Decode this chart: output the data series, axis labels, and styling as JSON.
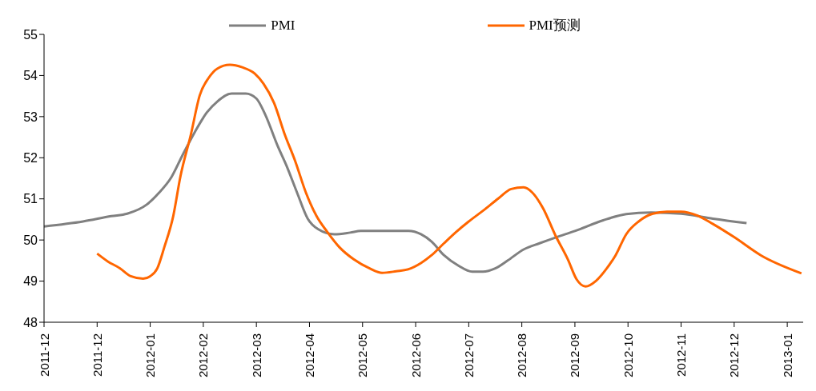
{
  "chart_data": {
    "type": "line",
    "xlim": [
      "2011-12-01",
      "2013-02-02"
    ],
    "ylim": [
      48,
      55
    ],
    "yticks": [
      48,
      49,
      50,
      51,
      52,
      53,
      54,
      55
    ],
    "xticks": [
      {
        "value": "2011-12-01",
        "label": "2011-12"
      },
      {
        "value": "2011-12-31",
        "label": "2011-12"
      },
      {
        "value": "2012-01-30",
        "label": "2012-01"
      },
      {
        "value": "2012-02-29",
        "label": "2012-02"
      },
      {
        "value": "2012-03-30",
        "label": "2012-03"
      },
      {
        "value": "2012-04-29",
        "label": "2012-04"
      },
      {
        "value": "2012-05-29",
        "label": "2012-05"
      },
      {
        "value": "2012-06-28",
        "label": "2012-06"
      },
      {
        "value": "2012-07-28",
        "label": "2012-07"
      },
      {
        "value": "2012-08-27",
        "label": "2012-08"
      },
      {
        "value": "2012-09-26",
        "label": "2012-09"
      },
      {
        "value": "2012-10-26",
        "label": "2012-10"
      },
      {
        "value": "2012-11-25",
        "label": "2012-11"
      },
      {
        "value": "2012-12-25",
        "label": "2012-12"
      },
      {
        "value": "2013-01-24",
        "label": "2013-01"
      }
    ],
    "grid": false,
    "legend": "top",
    "marker": "none",
    "line_style": "solid",
    "series": [
      {
        "name": "PMI",
        "color": "#808080",
        "x": [
          "2011-12-01",
          "2011-12-23",
          "2012-01-08",
          "2012-01-17",
          "2012-01-28",
          "2012-02-04",
          "2012-02-11",
          "2012-02-17",
          "2012-02-24",
          "2012-03-02",
          "2012-03-08",
          "2012-03-16",
          "2012-03-24",
          "2012-03-30",
          "2012-04-04",
          "2012-04-11",
          "2012-04-16",
          "2012-04-22",
          "2012-04-28",
          "2012-05-04",
          "2012-05-13",
          "2012-05-22",
          "2012-05-28",
          "2012-06-08",
          "2012-06-24",
          "2012-07-01",
          "2012-07-07",
          "2012-07-14",
          "2012-07-22",
          "2012-07-30",
          "2012-08-05",
          "2012-08-12",
          "2012-08-19",
          "2012-08-28",
          "2012-09-06",
          "2012-09-15",
          "2012-09-26",
          "2012-10-12",
          "2012-10-25",
          "2012-11-08",
          "2012-11-25",
          "2012-12-13",
          "2013-01-01"
        ],
        "values": [
          50.33,
          50.45,
          50.58,
          50.64,
          50.86,
          51.15,
          51.53,
          52.04,
          52.61,
          53.1,
          53.37,
          53.56,
          53.56,
          53.44,
          53.05,
          52.29,
          51.81,
          51.15,
          50.52,
          50.26,
          50.14,
          50.18,
          50.22,
          50.22,
          50.22,
          50.14,
          49.96,
          49.63,
          49.38,
          49.23,
          49.23,
          49.31,
          49.5,
          49.77,
          49.92,
          50.06,
          50.22,
          50.48,
          50.63,
          50.67,
          50.64,
          50.52,
          50.41
        ]
      },
      {
        "name": "PMI预测",
        "color": "#ff6600",
        "x": [
          "2011-12-31",
          "2012-01-06",
          "2012-01-13",
          "2012-01-19",
          "2012-01-26",
          "2012-01-30",
          "2012-02-03",
          "2012-02-07",
          "2012-02-12",
          "2012-02-16",
          "2012-02-22",
          "2012-02-27",
          "2012-03-03",
          "2012-03-08",
          "2012-03-15",
          "2012-03-22",
          "2012-03-29",
          "2012-04-03",
          "2012-04-09",
          "2012-04-15",
          "2012-04-21",
          "2012-04-27",
          "2012-05-03",
          "2012-05-09",
          "2012-05-16",
          "2012-05-24",
          "2012-06-02",
          "2012-06-09",
          "2012-06-17",
          "2012-06-24",
          "2012-07-01",
          "2012-07-07",
          "2012-07-14",
          "2012-07-21",
          "2012-07-28",
          "2012-08-05",
          "2012-08-14",
          "2012-08-21",
          "2012-08-28",
          "2012-09-02",
          "2012-09-08",
          "2012-09-15",
          "2012-09-22",
          "2012-09-27",
          "2012-10-02",
          "2012-10-08",
          "2012-10-14",
          "2012-10-19",
          "2012-10-25",
          "2012-11-01",
          "2012-11-09",
          "2012-11-17",
          "2012-11-25",
          "2012-12-04",
          "2012-12-13",
          "2012-12-25",
          "2013-01-09",
          "2013-02-01"
        ],
        "values": [
          49.67,
          49.48,
          49.31,
          49.12,
          49.06,
          49.12,
          49.31,
          49.83,
          50.58,
          51.53,
          52.57,
          53.52,
          53.94,
          54.17,
          54.26,
          54.2,
          54.05,
          53.8,
          53.33,
          52.57,
          51.91,
          51.15,
          50.58,
          50.2,
          49.82,
          49.53,
          49.31,
          49.2,
          49.24,
          49.29,
          49.44,
          49.63,
          49.92,
          50.2,
          50.45,
          50.71,
          51.02,
          51.24,
          51.28,
          51.15,
          50.77,
          50.11,
          49.53,
          49.04,
          48.87,
          49.01,
          49.31,
          49.63,
          50.14,
          50.45,
          50.64,
          50.69,
          50.69,
          50.6,
          50.39,
          50.07,
          49.63,
          49.19
        ]
      }
    ]
  }
}
